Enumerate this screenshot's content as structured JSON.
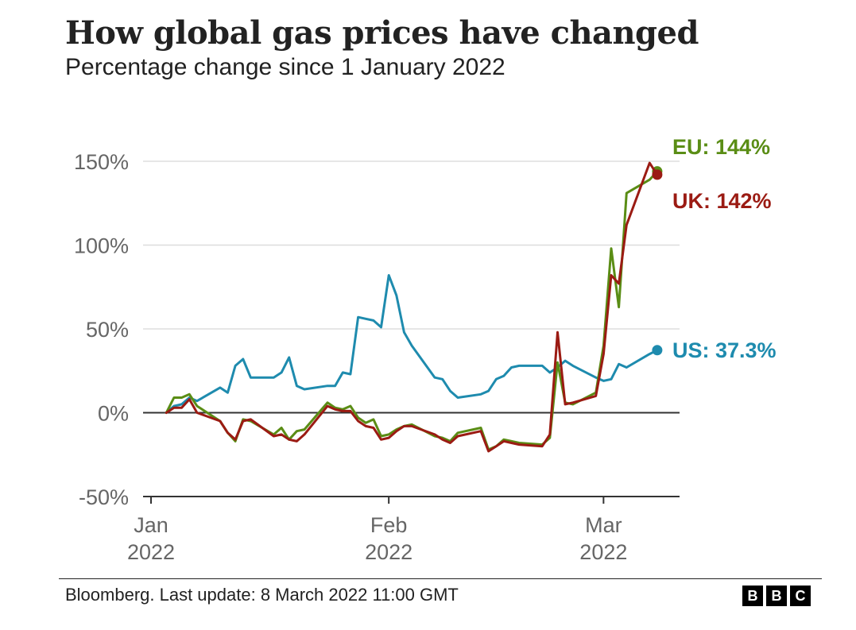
{
  "title": "How global gas prices have changed",
  "subtitle": "Percentage change since 1 January 2022",
  "source": "Bloomberg. Last update: 8 March 2022 11:00 GMT",
  "logo": {
    "letters": [
      "B",
      "B",
      "C"
    ]
  },
  "chart_data": {
    "type": "line",
    "title": "How global gas prices have changed",
    "subtitle": "Percentage change since 1 January 2022",
    "xlabel": "",
    "ylabel": "",
    "x_unit": "days since 1 January 2022",
    "xlim": [
      0,
      69
    ],
    "ylim": [
      -50,
      150
    ],
    "grid": true,
    "y_ticks": [
      {
        "value": 150,
        "label": "150%"
      },
      {
        "value": 100,
        "label": "100%"
      },
      {
        "value": 50,
        "label": "50%"
      },
      {
        "value": 0,
        "label": "0%"
      },
      {
        "value": -50,
        "label": "-50%"
      }
    ],
    "x_ticks": [
      {
        "value": 0,
        "month": "Jan",
        "year": "2022"
      },
      {
        "value": 31,
        "month": "Feb",
        "year": "2022"
      },
      {
        "value": 59,
        "month": "Mar",
        "year": "2022"
      }
    ],
    "series": [
      {
        "name": "US",
        "label": "US: 37.3%",
        "color": "#1e8bae",
        "x": [
          2,
          3,
          4,
          5,
          6,
          9,
          10,
          11,
          12,
          13,
          16,
          17,
          18,
          19,
          20,
          23,
          24,
          25,
          26,
          27,
          28,
          29,
          30,
          31,
          32,
          33,
          34,
          37,
          38,
          39,
          40,
          43,
          44,
          45,
          46,
          47,
          48,
          51,
          52,
          53,
          54,
          55,
          58,
          59,
          60,
          61,
          62,
          65,
          66
        ],
        "values": [
          0,
          4,
          5,
          9,
          7,
          15,
          12,
          28,
          32,
          21,
          21,
          24,
          33,
          16,
          14,
          16,
          16,
          24,
          23,
          57,
          56,
          55,
          51,
          82,
          70,
          48,
          40,
          21,
          20,
          13,
          9,
          11,
          13,
          20,
          22,
          27,
          28,
          28,
          24,
          27,
          31,
          28,
          21,
          19,
          20,
          29,
          27,
          35,
          37.3
        ]
      },
      {
        "name": "EU",
        "label": "EU: 144%",
        "color": "#5a8d15",
        "x": [
          2,
          3,
          4,
          5,
          6,
          9,
          10,
          11,
          12,
          13,
          16,
          17,
          18,
          19,
          20,
          23,
          24,
          25,
          26,
          27,
          28,
          29,
          30,
          31,
          32,
          33,
          34,
          37,
          38,
          39,
          40,
          43,
          44,
          45,
          46,
          47,
          48,
          51,
          52,
          53,
          54,
          55,
          58,
          59,
          60,
          61,
          62,
          65,
          66
        ],
        "values": [
          0,
          9,
          9,
          11,
          4,
          -5,
          -12,
          -17,
          -4,
          -5,
          -13,
          -9,
          -16,
          -11,
          -10,
          6,
          3,
          2,
          4,
          -3,
          -6,
          -4,
          -14,
          -13,
          -10,
          -8,
          -7,
          -14,
          -15,
          -17,
          -12,
          -9,
          -22,
          -20,
          -16,
          -17,
          -18,
          -19,
          -15,
          30,
          6,
          5,
          12,
          40,
          98,
          63,
          131,
          139,
          144
        ]
      },
      {
        "name": "UK",
        "label": "UK: 142%",
        "color": "#9b1b13",
        "x": [
          2,
          3,
          4,
          5,
          6,
          9,
          10,
          11,
          12,
          13,
          16,
          17,
          18,
          19,
          20,
          23,
          24,
          25,
          26,
          27,
          28,
          29,
          30,
          31,
          32,
          33,
          34,
          37,
          38,
          39,
          40,
          43,
          44,
          45,
          46,
          47,
          48,
          51,
          52,
          53,
          54,
          55,
          58,
          59,
          60,
          61,
          62,
          65,
          66
        ],
        "values": [
          0,
          3,
          3,
          8,
          0,
          -5,
          -12,
          -16,
          -5,
          -4,
          -14,
          -13,
          -16,
          -17,
          -13,
          4,
          2,
          1,
          1,
          -5,
          -8,
          -9,
          -16,
          -15,
          -11,
          -8,
          -8,
          -13,
          -16,
          -18,
          -14,
          -11,
          -23,
          -20,
          -17,
          -18,
          -19,
          -20,
          -13,
          48,
          5,
          6,
          10,
          35,
          82,
          77,
          112,
          149,
          142
        ]
      }
    ]
  }
}
